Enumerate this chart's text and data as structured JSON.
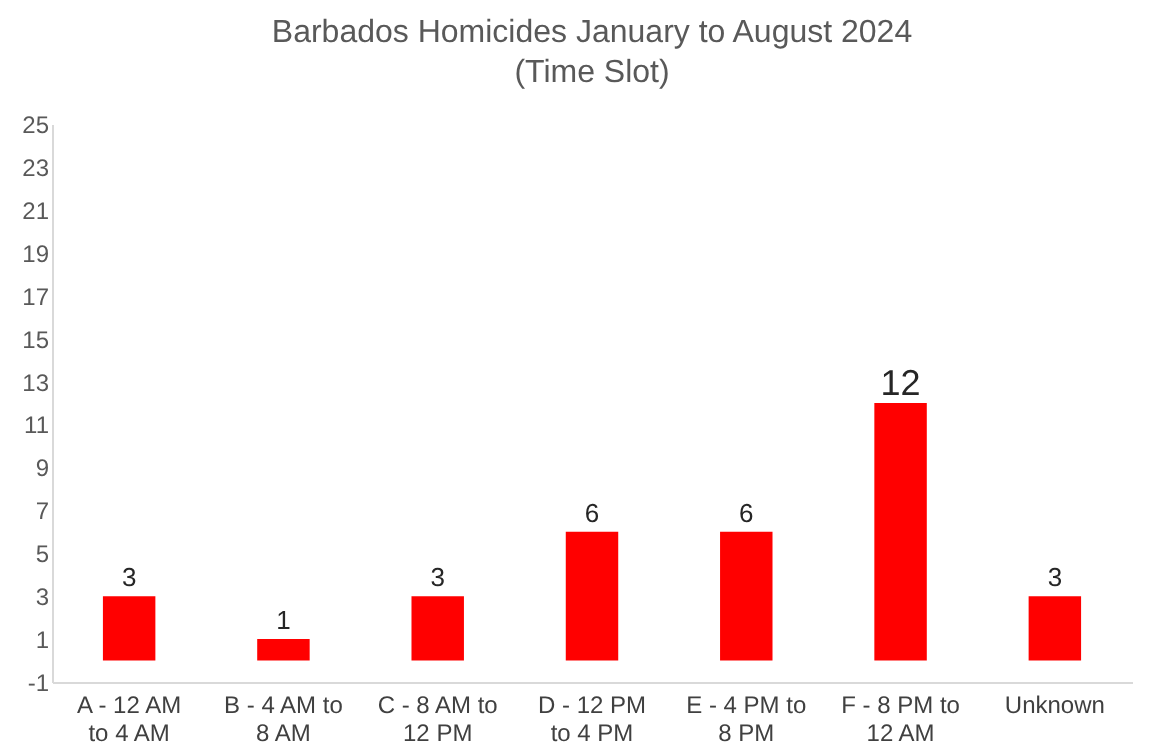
{
  "chart_data": {
    "type": "bar",
    "title": "Barbados Homicides January to August 2024",
    "subtitle": "(Time Slot)",
    "categories": [
      "A - 12 AM to 4 AM",
      "B - 4 AM to 8 AM",
      "C - 8 AM to 12 PM",
      "D - 12 PM to 4 PM",
      "E - 4 PM to 8 PM",
      "F - 8 PM to 12 AM",
      "Unknown"
    ],
    "values": [
      3,
      1,
      3,
      6,
      6,
      12,
      3
    ],
    "color": "#ff0000",
    "ylim": [
      -1,
      25
    ],
    "yticks": [
      -1,
      1,
      3,
      5,
      7,
      9,
      11,
      13,
      15,
      17,
      19,
      21,
      23,
      25
    ],
    "data_labels": true,
    "grid": false
  }
}
